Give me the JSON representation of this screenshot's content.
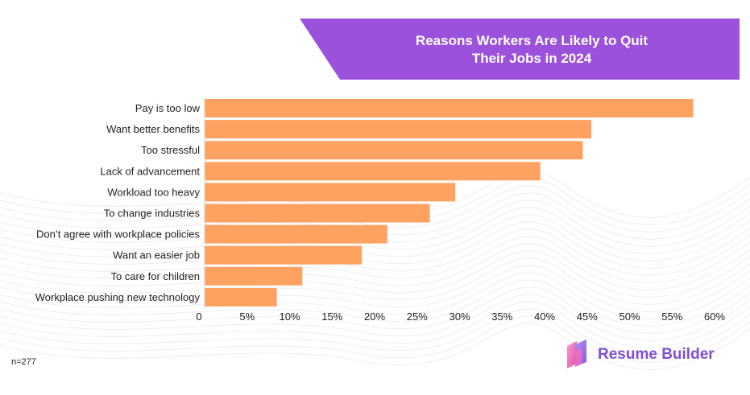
{
  "title_line1": "Reasons Workers Are Likely to Quit",
  "title_line2": "Their Jobs in 2024",
  "footnote": "n=277",
  "brand": {
    "name": "Resume Builder",
    "logo": "resume-builder-logo-icon"
  },
  "colors": {
    "bar": "#ffa261",
    "banner": "#9b51dc",
    "brand": "#7d4fd6"
  },
  "chart_data": {
    "type": "bar",
    "orientation": "horizontal",
    "title": "Reasons Workers Are Likely to Quit Their Jobs in 2024",
    "categories": [
      "Pay is too low",
      "Want better benefits",
      "Too stressful",
      "Lack of advancement",
      "Workload too heavy",
      "To change industries",
      "Don’t agree with workplace policies",
      "Want an easier job",
      "To care for children",
      "Workplace pushing new technology"
    ],
    "values": [
      57.5,
      45.5,
      44.5,
      39.5,
      29.5,
      26.5,
      21.5,
      18.5,
      11.5,
      8.5
    ],
    "xlim": [
      0,
      60
    ],
    "xticks": [
      "0",
      "5%",
      "10%",
      "15%",
      "20%",
      "25%",
      "30%",
      "35%",
      "40%",
      "45%",
      "50%",
      "55%",
      "60%"
    ],
    "grid": false,
    "legend": "none"
  }
}
